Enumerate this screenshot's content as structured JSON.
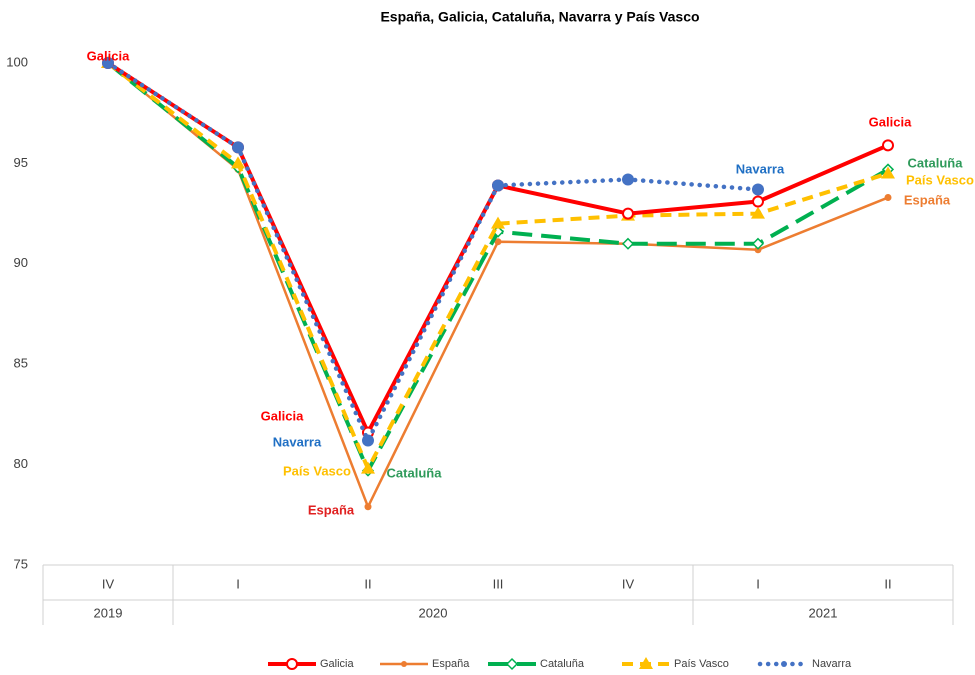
{
  "chart_data": {
    "type": "line",
    "title": "España, Galicia, Cataluña, Navarra y País Vasco",
    "categories": [
      "IV",
      "I",
      "II",
      "III",
      "IV",
      "I",
      "II"
    ],
    "category_groups": [
      {
        "label": "2019",
        "count": 1
      },
      {
        "label": "2020",
        "count": 4
      },
      {
        "label": "2021",
        "count": 2
      }
    ],
    "ylim": [
      75,
      100
    ],
    "yticks": [
      75,
      80,
      85,
      90,
      95,
      100
    ],
    "legend": "bottom",
    "series": [
      {
        "name": "Galicia",
        "color": "#ff0000",
        "line": "solid",
        "marker": "circle-open",
        "values": [
          100,
          95.8,
          81.6,
          93.9,
          92.5,
          93.1,
          95.9
        ]
      },
      {
        "name": "España",
        "color": "#ed7d31",
        "line": "thin",
        "marker": "circle",
        "values": [
          100,
          94.7,
          77.9,
          91.1,
          91.0,
          90.7,
          93.3
        ]
      },
      {
        "name": "Cataluña",
        "color": "#00b050",
        "line": "long-dash",
        "marker": "diamond-open",
        "values": [
          100,
          94.8,
          79.7,
          91.6,
          91.0,
          91.0,
          94.7
        ]
      },
      {
        "name": "País Vasco",
        "color": "#ffc000",
        "line": "dash",
        "marker": "triangle",
        "values": [
          100,
          95.0,
          79.8,
          92.0,
          92.4,
          92.5,
          94.5
        ]
      },
      {
        "name": "Navarra",
        "color": "#4472c4",
        "line": "dot",
        "marker": "circle",
        "values": [
          100,
          95.8,
          81.2,
          93.9,
          94.2,
          93.7,
          null
        ]
      }
    ],
    "annotations": [
      {
        "text": "Galicia",
        "color": "#ff0000"
      },
      {
        "text": "Galicia",
        "color": "#ff0000"
      },
      {
        "text": "Navarra",
        "color": "#1f6fc4"
      },
      {
        "text": "País Vasco",
        "color": "#ffc000"
      },
      {
        "text": "Cataluña",
        "color": "#2e9a5a"
      },
      {
        "text": "España",
        "color": "#e02020"
      },
      {
        "text": "Navarra",
        "color": "#1f6fc4"
      },
      {
        "text": "Galicia",
        "color": "#ff0000"
      },
      {
        "text": "Cataluña",
        "color": "#2e9a5a"
      },
      {
        "text": "País Vasco",
        "color": "#ffc000"
      },
      {
        "text": "España",
        "color": "#ed7d31"
      }
    ]
  }
}
